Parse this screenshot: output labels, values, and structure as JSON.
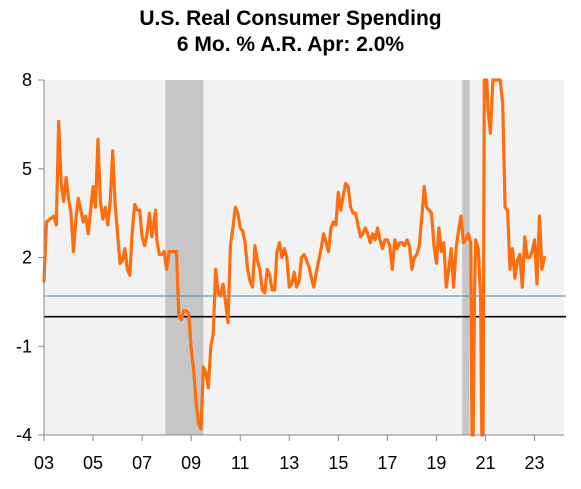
{
  "chart_data": {
    "type": "line",
    "title": "U.S. Real Consumer Spending",
    "subtitle": "6 Mo. % A.R.   Apr: 2.0%",
    "xlabel": "",
    "ylabel": "",
    "ylim": [
      -4,
      8
    ],
    "xlim": [
      2003.0,
      2024.2
    ],
    "yticks": [
      "8",
      "5",
      "2",
      "-1",
      "-4"
    ],
    "ytick_values": [
      8,
      5,
      2,
      -1,
      -4
    ],
    "xticks": [
      "03",
      "05",
      "07",
      "09",
      "11",
      "13",
      "15",
      "17",
      "19",
      "21",
      "23"
    ],
    "xtick_values": [
      2003,
      2005,
      2007,
      2009,
      2011,
      2013,
      2015,
      2017,
      2019,
      2021,
      2023
    ],
    "grid": false,
    "background": "#f2f2f2",
    "series": [
      {
        "color": "#ff6d0d",
        "points": [
          [
            2003.0,
            1.2
          ],
          [
            2003.1,
            3.2
          ],
          [
            2003.25,
            3.3
          ],
          [
            2003.4,
            3.4
          ],
          [
            2003.5,
            3.1
          ],
          [
            2003.6,
            6.6
          ],
          [
            2003.7,
            4.5
          ],
          [
            2003.8,
            3.9
          ],
          [
            2003.9,
            4.7
          ],
          [
            2004.0,
            4.0
          ],
          [
            2004.1,
            3.5
          ],
          [
            2004.2,
            2.2
          ],
          [
            2004.3,
            3.3
          ],
          [
            2004.4,
            4.0
          ],
          [
            2004.5,
            3.6
          ],
          [
            2004.6,
            3.2
          ],
          [
            2004.7,
            3.4
          ],
          [
            2004.8,
            2.8
          ],
          [
            2004.9,
            3.6
          ],
          [
            2005.0,
            4.4
          ],
          [
            2005.1,
            3.7
          ],
          [
            2005.2,
            6.0
          ],
          [
            2005.3,
            3.9
          ],
          [
            2005.4,
            3.3
          ],
          [
            2005.5,
            3.7
          ],
          [
            2005.6,
            3.1
          ],
          [
            2005.7,
            3.9
          ],
          [
            2005.8,
            5.6
          ],
          [
            2005.9,
            3.8
          ],
          [
            2006.0,
            2.8
          ],
          [
            2006.1,
            1.8
          ],
          [
            2006.2,
            1.9
          ],
          [
            2006.3,
            2.3
          ],
          [
            2006.4,
            1.6
          ],
          [
            2006.5,
            1.4
          ],
          [
            2006.6,
            2.9
          ],
          [
            2006.7,
            3.8
          ],
          [
            2006.8,
            3.6
          ],
          [
            2006.9,
            3.6
          ],
          [
            2007.0,
            2.7
          ],
          [
            2007.1,
            2.4
          ],
          [
            2007.2,
            2.8
          ],
          [
            2007.3,
            3.5
          ],
          [
            2007.4,
            2.7
          ],
          [
            2007.5,
            3.3
          ],
          [
            2007.55,
            3.6
          ],
          [
            2007.6,
            2.6
          ],
          [
            2007.7,
            2.1
          ],
          [
            2007.8,
            2.1
          ],
          [
            2007.9,
            2.2
          ],
          [
            2008.0,
            1.6
          ],
          [
            2008.1,
            2.2
          ],
          [
            2008.2,
            2.2
          ],
          [
            2008.3,
            2.2
          ],
          [
            2008.4,
            2.2
          ],
          [
            2008.5,
            0.0
          ],
          [
            2008.6,
            -0.1
          ],
          [
            2008.7,
            0.2
          ],
          [
            2008.8,
            0.2
          ],
          [
            2008.9,
            0.1
          ],
          [
            2009.0,
            -1.1
          ],
          [
            2009.1,
            -1.8
          ],
          [
            2009.2,
            -2.9
          ],
          [
            2009.3,
            -3.6
          ],
          [
            2009.4,
            -3.8
          ],
          [
            2009.5,
            -1.7
          ],
          [
            2009.6,
            -1.9
          ],
          [
            2009.7,
            -2.4
          ],
          [
            2009.8,
            -1.0
          ],
          [
            2009.9,
            -0.6
          ],
          [
            2010.0,
            1.6
          ],
          [
            2010.1,
            0.8
          ],
          [
            2010.2,
            0.7
          ],
          [
            2010.3,
            1.1
          ],
          [
            2010.4,
            0.5
          ],
          [
            2010.5,
            -0.2
          ],
          [
            2010.6,
            2.4
          ],
          [
            2010.7,
            3.0
          ],
          [
            2010.8,
            3.7
          ],
          [
            2010.9,
            3.5
          ],
          [
            2011.0,
            3.0
          ],
          [
            2011.1,
            2.9
          ],
          [
            2011.2,
            2.5
          ],
          [
            2011.3,
            1.6
          ],
          [
            2011.4,
            1.2
          ],
          [
            2011.5,
            1.0
          ],
          [
            2011.6,
            2.4
          ],
          [
            2011.7,
            1.9
          ],
          [
            2011.8,
            1.6
          ],
          [
            2011.9,
            0.9
          ],
          [
            2012.0,
            0.8
          ],
          [
            2012.1,
            1.6
          ],
          [
            2012.2,
            1.4
          ],
          [
            2012.3,
            0.9
          ],
          [
            2012.4,
            0.9
          ],
          [
            2012.5,
            2.2
          ],
          [
            2012.6,
            2.5
          ],
          [
            2012.7,
            2.0
          ],
          [
            2012.8,
            2.3
          ],
          [
            2012.9,
            2.0
          ],
          [
            2013.0,
            1.0
          ],
          [
            2013.1,
            1.1
          ],
          [
            2013.2,
            1.5
          ],
          [
            2013.3,
            1.0
          ],
          [
            2013.4,
            1.2
          ],
          [
            2013.5,
            2.0
          ],
          [
            2013.6,
            2.1
          ],
          [
            2013.7,
            1.9
          ],
          [
            2013.8,
            1.7
          ],
          [
            2013.9,
            1.3
          ],
          [
            2014.0,
            1.0
          ],
          [
            2014.1,
            1.5
          ],
          [
            2014.2,
            1.9
          ],
          [
            2014.3,
            2.3
          ],
          [
            2014.4,
            2.8
          ],
          [
            2014.5,
            2.5
          ],
          [
            2014.6,
            2.2
          ],
          [
            2014.7,
            3.0
          ],
          [
            2014.8,
            3.2
          ],
          [
            2014.9,
            3.1
          ],
          [
            2015.0,
            4.2
          ],
          [
            2015.1,
            3.6
          ],
          [
            2015.2,
            4.1
          ],
          [
            2015.3,
            4.5
          ],
          [
            2015.4,
            4.4
          ],
          [
            2015.5,
            3.7
          ],
          [
            2015.6,
            3.5
          ],
          [
            2015.7,
            3.5
          ],
          [
            2015.8,
            3.1
          ],
          [
            2015.9,
            2.7
          ],
          [
            2016.0,
            2.8
          ],
          [
            2016.1,
            3.0
          ],
          [
            2016.2,
            2.8
          ],
          [
            2016.3,
            2.5
          ],
          [
            2016.4,
            2.8
          ],
          [
            2016.5,
            2.6
          ],
          [
            2016.6,
            3.0
          ],
          [
            2016.7,
            2.6
          ],
          [
            2016.8,
            2.3
          ],
          [
            2016.9,
            2.6
          ],
          [
            2017.0,
            2.6
          ],
          [
            2017.1,
            2.4
          ],
          [
            2017.2,
            1.6
          ],
          [
            2017.3,
            2.6
          ],
          [
            2017.4,
            2.3
          ],
          [
            2017.5,
            2.5
          ],
          [
            2017.6,
            2.5
          ],
          [
            2017.7,
            2.4
          ],
          [
            2017.8,
            2.6
          ],
          [
            2017.9,
            2.4
          ],
          [
            2018.0,
            1.6
          ],
          [
            2018.1,
            2.0
          ],
          [
            2018.2,
            2.1
          ],
          [
            2018.3,
            2.4
          ],
          [
            2018.4,
            3.3
          ],
          [
            2018.5,
            4.4
          ],
          [
            2018.6,
            3.7
          ],
          [
            2018.7,
            3.6
          ],
          [
            2018.8,
            3.5
          ],
          [
            2018.9,
            2.4
          ],
          [
            2019.0,
            1.8
          ],
          [
            2019.1,
            3.0
          ],
          [
            2019.2,
            2.2
          ],
          [
            2019.3,
            2.5
          ],
          [
            2019.4,
            1.0
          ],
          [
            2019.5,
            1.6
          ],
          [
            2019.6,
            2.3
          ],
          [
            2019.7,
            1.0
          ],
          [
            2019.8,
            2.3
          ],
          [
            2019.9,
            2.9
          ],
          [
            2020.0,
            3.4
          ],
          [
            2020.1,
            2.5
          ],
          [
            2020.2,
            2.6
          ],
          [
            2020.3,
            2.8
          ],
          [
            2020.4,
            2.5
          ],
          [
            2020.45,
            -4.0
          ],
          [
            2020.5,
            -4.0
          ],
          [
            2020.55,
            0.8
          ],
          [
            2020.6,
            2.6
          ],
          [
            2020.7,
            2.3
          ],
          [
            2020.8,
            0.7
          ],
          [
            2020.85,
            -4.0
          ],
          [
            2020.9,
            -4.0
          ],
          [
            2020.95,
            8.0
          ],
          [
            2021.05,
            8.0
          ],
          [
            2021.1,
            7.0
          ],
          [
            2021.2,
            6.2
          ],
          [
            2021.3,
            8.0
          ],
          [
            2021.6,
            8.0
          ],
          [
            2021.7,
            7.2
          ],
          [
            2021.8,
            3.7
          ],
          [
            2021.9,
            3.6
          ],
          [
            2022.0,
            1.6
          ],
          [
            2022.1,
            2.3
          ],
          [
            2022.2,
            1.3
          ],
          [
            2022.3,
            1.9
          ],
          [
            2022.4,
            2.1
          ],
          [
            2022.5,
            1.0
          ],
          [
            2022.6,
            2.7
          ],
          [
            2022.7,
            2.0
          ],
          [
            2022.8,
            2.0
          ],
          [
            2022.9,
            2.2
          ],
          [
            2023.0,
            2.6
          ],
          [
            2023.1,
            1.1
          ],
          [
            2023.2,
            3.4
          ],
          [
            2023.3,
            1.6
          ],
          [
            2023.4,
            2.0
          ]
        ]
      }
    ],
    "reference_lines": [
      {
        "y": 0.0,
        "color": "#000000"
      },
      {
        "y": 0.7,
        "color": "#3a8fb5"
      }
    ],
    "shaded_periods": [
      {
        "start": 2007.95,
        "end": 2009.5,
        "color": "#c6c6c6"
      },
      {
        "start": 2020.05,
        "end": 2020.35,
        "color": "#c6c6c6"
      }
    ]
  }
}
